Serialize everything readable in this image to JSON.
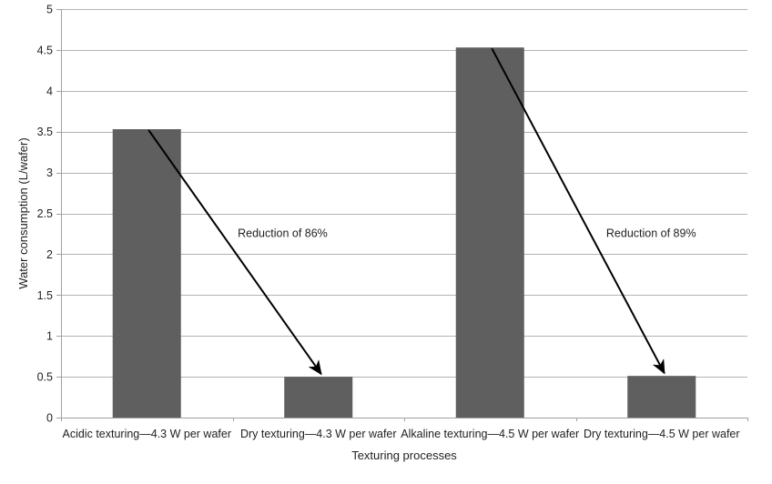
{
  "chart_data": {
    "type": "bar",
    "title": "",
    "xlabel": "Texturing processes",
    "ylabel": "Water consumption (L/wafer)",
    "categories": [
      "Acidic texturing—4.3 W per wafer",
      "Dry texturing—4.3 W per wafer",
      "Alkaline texturing—4.5 W per wafer",
      "Dry texturing—4.5 W per wafer"
    ],
    "values": [
      3.53,
      0.5,
      4.53,
      0.51
    ],
    "ylim": [
      0,
      5
    ],
    "ytick_step": 0.5,
    "yticks": [
      "0",
      "0.5",
      "1",
      "1.5",
      "2",
      "2.5",
      "3",
      "3.5",
      "4",
      "4.5",
      "5"
    ],
    "grid": true,
    "legend": null,
    "annotations": [
      {
        "label": "Reduction of 86%",
        "from_bar": 0,
        "to_bar": 1
      },
      {
        "label": "Reduction of 89%",
        "from_bar": 2,
        "to_bar": 3
      }
    ],
    "colors": {
      "bar": "#5f5f5f",
      "gridline": "#b3b3b3",
      "axis": "#a0a0a0",
      "text": "#1f1f1f",
      "arrow": "#000000",
      "background": "#ffffff"
    }
  }
}
